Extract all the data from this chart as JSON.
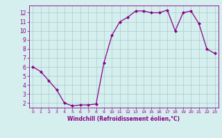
{
  "x": [
    0,
    1,
    2,
    3,
    4,
    5,
    6,
    7,
    8,
    9,
    10,
    11,
    12,
    13,
    14,
    15,
    16,
    17,
    18,
    19,
    20,
    21,
    22,
    23
  ],
  "y": [
    6.0,
    5.5,
    4.5,
    3.5,
    2.0,
    1.7,
    1.8,
    1.8,
    1.9,
    6.5,
    9.5,
    11.0,
    11.5,
    12.2,
    12.2,
    12.0,
    12.0,
    12.3,
    10.0,
    12.0,
    12.2,
    10.8,
    8.0,
    7.5
  ],
  "line_color": "#880088",
  "marker": "D",
  "marker_size": 2.0,
  "bg_color": "#d5eeee",
  "grid_color": "#aacccc",
  "xlabel": "Windchill (Refroidissement éolien,°C)",
  "xlabel_color": "#880088",
  "tick_color": "#880088",
  "ylim": [
    1.5,
    12.8
  ],
  "xlim": [
    -0.5,
    23.5
  ],
  "yticks": [
    2,
    3,
    4,
    5,
    6,
    7,
    8,
    9,
    10,
    11,
    12
  ],
  "xticks": [
    0,
    1,
    2,
    3,
    4,
    5,
    6,
    7,
    8,
    9,
    10,
    11,
    12,
    13,
    14,
    15,
    16,
    17,
    18,
    19,
    20,
    21,
    22,
    23
  ]
}
